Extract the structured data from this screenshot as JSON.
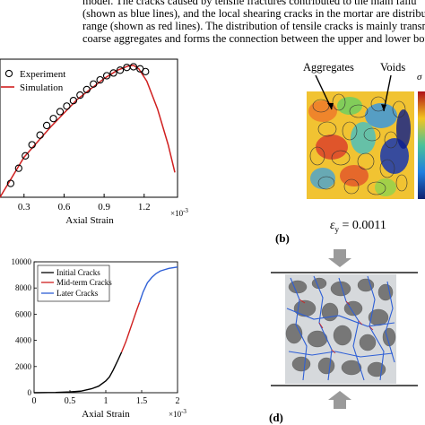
{
  "paragraph": {
    "line1": "model.  The cracks caused by tensile fractures contributed to the main failu",
    "line2": "(shown as blue lines), and the local shearing cracks in the mortar are distributed",
    "line3": "range (shown as red lines). The distribution of tensile cracks is mainly transmitte",
    "line4": "coarse aggregates and forms the connection between the upper and lower boun"
  },
  "chart_data": [
    {
      "type": "line",
      "panel": "a",
      "legend": [
        "Experiment",
        "Simulation"
      ],
      "xlabel": "Axial Strain",
      "x_multiplier": "×10",
      "x_multiplier_exp": "-3",
      "xticks": [
        "0.3",
        "0.6",
        "0.9",
        "1.2"
      ],
      "xlim": [
        0.12,
        1.45
      ],
      "ylim": [
        0,
        1
      ],
      "series": [
        {
          "name": "Experiment",
          "style": "markers",
          "x": [
            0.2,
            0.26,
            0.31,
            0.36,
            0.42,
            0.47,
            0.52,
            0.57,
            0.62,
            0.67,
            0.72,
            0.77,
            0.82,
            0.87,
            0.92,
            0.97,
            1.02,
            1.07,
            1.12,
            1.17,
            1.21
          ],
          "y": [
            0.1,
            0.21,
            0.3,
            0.38,
            0.45,
            0.52,
            0.57,
            0.62,
            0.66,
            0.7,
            0.74,
            0.78,
            0.82,
            0.85,
            0.88,
            0.9,
            0.92,
            0.94,
            0.945,
            0.93,
            0.91
          ]
        },
        {
          "name": "Simulation",
          "style": "line",
          "color": "#d01f1f",
          "x": [
            0.12,
            0.3,
            0.5,
            0.7,
            0.9,
            1.0,
            1.08,
            1.12,
            1.16,
            1.22,
            1.3,
            1.38,
            1.43
          ],
          "y": [
            0.0,
            0.29,
            0.51,
            0.71,
            0.86,
            0.92,
            0.95,
            0.955,
            0.93,
            0.84,
            0.64,
            0.38,
            0.18
          ]
        }
      ]
    },
    {
      "type": "line",
      "panel": "c",
      "legend": [
        "Initial Cracks",
        "Mid-term Cracks",
        "Later Cracks"
      ],
      "xlabel": "Axial Strain",
      "x_multiplier": "×10",
      "x_multiplier_exp": "-3",
      "xticks": [
        "0",
        "0.5",
        "1",
        "1.5",
        "2"
      ],
      "yticks": [
        "0",
        "2000",
        "4000",
        "6000",
        "8000",
        "10000"
      ],
      "xlim": [
        0,
        2
      ],
      "ylim": [
        0,
        10000
      ],
      "series": [
        {
          "name": "Initial Cracks",
          "color": "#000000",
          "x": [
            0,
            0.3,
            0.5,
            0.65,
            0.8,
            0.9,
            1.0,
            1.05,
            1.1,
            1.17,
            1.22
          ],
          "y": [
            0,
            20,
            60,
            120,
            300,
            500,
            900,
            1200,
            1700,
            2500,
            3100
          ]
        },
        {
          "name": "Mid-term Cracks",
          "color": "#d01f1f",
          "x": [
            1.22,
            1.28,
            1.33,
            1.38,
            1.43,
            1.47
          ],
          "y": [
            3100,
            3900,
            4700,
            5500,
            6300,
            6900
          ]
        },
        {
          "name": "Later Cracks",
          "color": "#2e5fd6",
          "x": [
            1.47,
            1.52,
            1.58,
            1.64,
            1.7,
            1.76,
            1.82,
            1.88,
            1.94,
            2.0
          ],
          "y": [
            6900,
            7700,
            8400,
            8800,
            9100,
            9300,
            9400,
            9500,
            9550,
            9600
          ]
        }
      ]
    }
  ],
  "panel_b": {
    "label_aggregates": "Aggregates",
    "label_voids": "Voids",
    "sigma_label": "σ",
    "epsilon_symbol": "ε",
    "epsilon_sub": "y",
    "epsilon_value": " = 0.0011",
    "tag": "(b)"
  },
  "panel_d": {
    "tag": "(d)"
  }
}
